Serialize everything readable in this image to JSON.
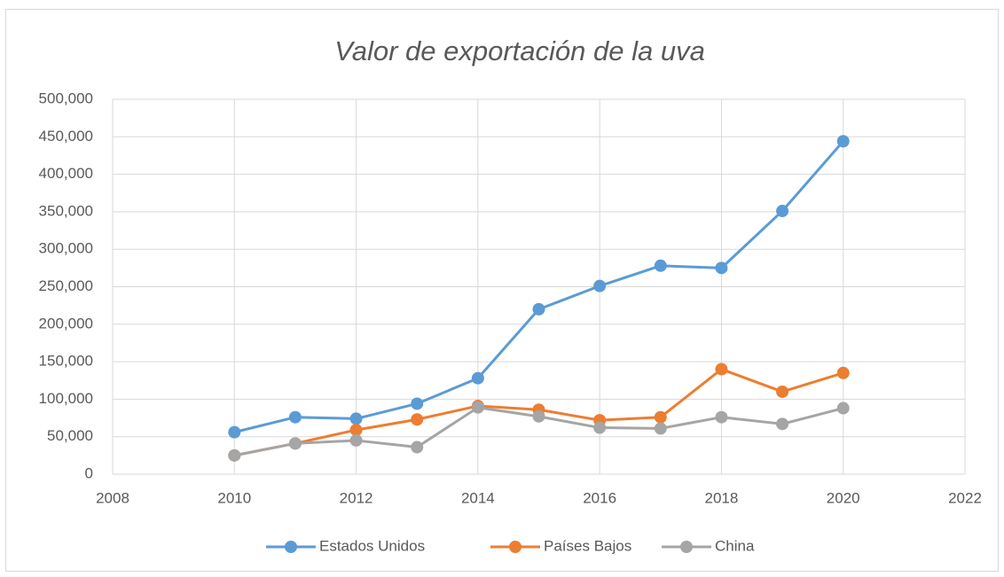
{
  "chart_data": {
    "type": "line",
    "title": "Valor de exportación de la uva",
    "x": [
      2010,
      2011,
      2012,
      2013,
      2014,
      2015,
      2016,
      2017,
      2018,
      2019,
      2020
    ],
    "series": [
      {
        "name": "Estados Unidos",
        "color": "#5b9bd5",
        "values": [
          56000,
          76000,
          74000,
          94000,
          128000,
          220000,
          251000,
          278000,
          275000,
          351000,
          444000
        ]
      },
      {
        "name": "Países Bajos",
        "color": "#ed7d31",
        "values": [
          25000,
          41000,
          59000,
          73000,
          91000,
          86000,
          72000,
          76000,
          140000,
          110000,
          135000
        ]
      },
      {
        "name": "China",
        "color": "#a5a5a5",
        "values": [
          25000,
          41000,
          45000,
          36000,
          89000,
          77000,
          62000,
          61000,
          76000,
          67000,
          88000
        ]
      }
    ],
    "xlim": [
      2008,
      2022
    ],
    "xticks": [
      2008,
      2010,
      2012,
      2014,
      2016,
      2018,
      2020,
      2022
    ],
    "ylim": [
      0,
      500000
    ],
    "yticks": [
      0,
      {
        "value": 50000,
        "label": "50,000"
      },
      {
        "value": 100000,
        "label": "100,000"
      },
      {
        "value": 150000,
        "label": "150,000"
      },
      {
        "value": 200000,
        "label": "200,000"
      },
      {
        "value": 250000,
        "label": "250,000"
      },
      {
        "value": 300000,
        "label": "300,000"
      },
      {
        "value": 350000,
        "label": "350,000"
      },
      {
        "value": 400000,
        "label": "400,000"
      },
      {
        "value": 450000,
        "label": "450,000"
      },
      {
        "value": 500000,
        "label": "500,000"
      }
    ],
    "grid": true,
    "legend": "bottom"
  }
}
